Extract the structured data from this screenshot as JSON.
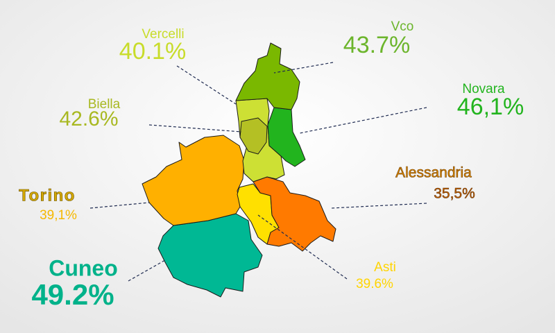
{
  "regions": [
    {
      "name": "Vercelli",
      "value": "40.1%"
    },
    {
      "name": "Vco",
      "value": "43.7%"
    },
    {
      "name": "Novara",
      "value": "46,1%"
    },
    {
      "name": "Biella",
      "value": "42.6%"
    },
    {
      "name": "Torino",
      "value": "39,1%"
    },
    {
      "name": "Alessandria",
      "value": "35,5%"
    },
    {
      "name": "Asti",
      "value": "39.6%"
    },
    {
      "name": "Cuneo",
      "value": "49.2%"
    }
  ]
}
